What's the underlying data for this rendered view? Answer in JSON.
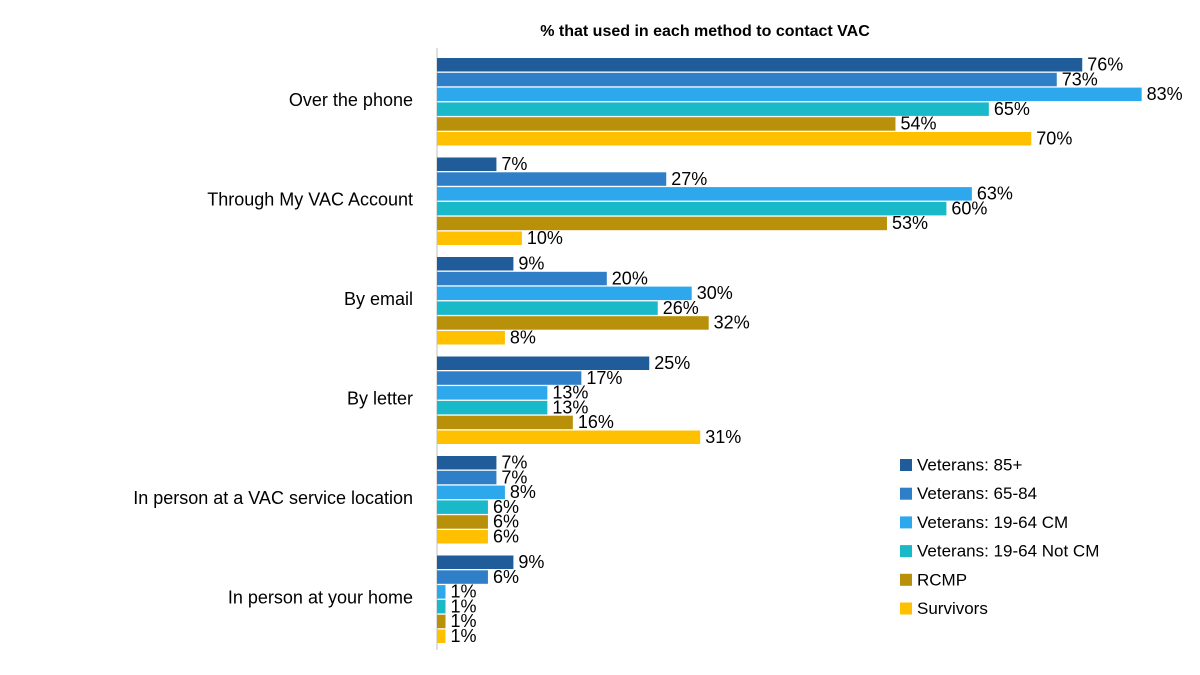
{
  "chart_data": {
    "type": "bar",
    "orientation": "horizontal",
    "title": "% that used in each method to contact VAC",
    "categories": [
      "Over the phone",
      "Through My VAC Account",
      "By email",
      "By letter",
      "In person at a VAC service location",
      "In person at your home"
    ],
    "series": [
      {
        "name": "Veterans: 85+",
        "color": "#1f5c99",
        "values": [
          76,
          7,
          9,
          25,
          7,
          9
        ],
        "value_labels": [
          "76%",
          "7%",
          "9%",
          "25%",
          "7%",
          "9%"
        ]
      },
      {
        "name": "Veterans: 65-84",
        "color": "#2e7fc7",
        "values": [
          73,
          27,
          20,
          17,
          7,
          6
        ],
        "value_labels": [
          "73%",
          "27%",
          "20%",
          "17%",
          "7%",
          "6%"
        ]
      },
      {
        "name": "Veterans: 19-64 CM",
        "color": "#2ea8ec",
        "values": [
          83,
          63,
          30,
          13,
          8,
          1
        ],
        "value_labels": [
          "83%",
          "63%",
          "30%",
          "13%",
          "8%",
          "1%"
        ]
      },
      {
        "name": "Veterans: 19-64 Not CM",
        "color": "#19b9c9",
        "values": [
          65,
          60,
          26,
          13,
          6,
          1
        ],
        "value_labels": [
          "65%",
          "60%",
          "26%",
          "13%",
          "6%",
          "1%"
        ]
      },
      {
        "name": "RCMP",
        "color": "#b8900a",
        "values": [
          54,
          53,
          32,
          16,
          6,
          1
        ],
        "value_labels": [
          "54%",
          "53%",
          "32%",
          "16%",
          "6%",
          "1%"
        ]
      },
      {
        "name": "Survivors",
        "color": "#ffc000",
        "values": [
          70,
          10,
          8,
          31,
          6,
          1
        ],
        "value_labels": [
          "70%",
          "10%",
          "8%",
          "31%",
          "6%",
          "1%"
        ]
      }
    ],
    "legend": "lower right"
  }
}
